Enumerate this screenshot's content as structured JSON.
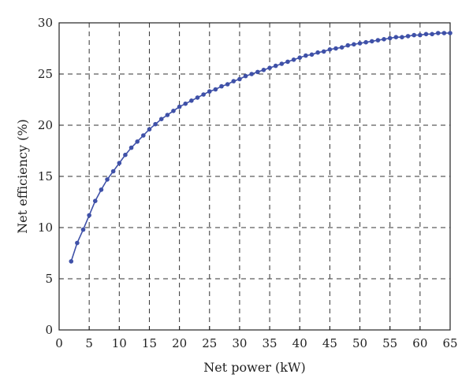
{
  "chart_data": {
    "type": "line",
    "xlabel": "Net power (kW)",
    "ylabel": "Net efficiency (%)",
    "xlim": [
      0,
      65
    ],
    "ylim": [
      0,
      30
    ],
    "xticks": [
      0,
      5,
      10,
      15,
      20,
      25,
      30,
      35,
      40,
      45,
      50,
      55,
      60,
      65
    ],
    "yticks": [
      0,
      5,
      10,
      15,
      20,
      25,
      30
    ],
    "grid": true,
    "line_color": "#3f51a8",
    "series": [
      {
        "x": [
          2,
          3,
          4,
          5,
          6,
          7,
          8,
          9,
          10,
          11,
          12,
          13,
          14,
          15,
          16,
          17,
          18,
          19,
          20,
          21,
          22,
          23,
          24,
          25,
          26,
          27,
          28,
          29,
          30,
          31,
          32,
          33,
          34,
          35,
          36,
          37,
          38,
          39,
          40,
          41,
          42,
          43,
          44,
          45,
          46,
          47,
          48,
          49,
          50,
          51,
          52,
          53,
          54,
          55,
          56,
          57,
          58,
          59,
          60,
          61,
          62,
          63,
          64,
          65
        ],
        "y": [
          6.7,
          8.5,
          9.8,
          11.2,
          12.6,
          13.7,
          14.7,
          15.5,
          16.3,
          17.1,
          17.8,
          18.4,
          19.0,
          19.6,
          20.1,
          20.6,
          21.0,
          21.4,
          21.8,
          22.1,
          22.4,
          22.7,
          23.0,
          23.3,
          23.5,
          23.8,
          24.0,
          24.3,
          24.5,
          24.8,
          25.0,
          25.2,
          25.4,
          25.6,
          25.8,
          26.0,
          26.2,
          26.4,
          26.6,
          26.8,
          26.9,
          27.1,
          27.2,
          27.4,
          27.5,
          27.6,
          27.8,
          27.9,
          28.0,
          28.1,
          28.2,
          28.3,
          28.4,
          28.5,
          28.6,
          28.6,
          28.7,
          28.8,
          28.8,
          28.9,
          28.9,
          29.0,
          29.0,
          29.0
        ]
      }
    ]
  }
}
